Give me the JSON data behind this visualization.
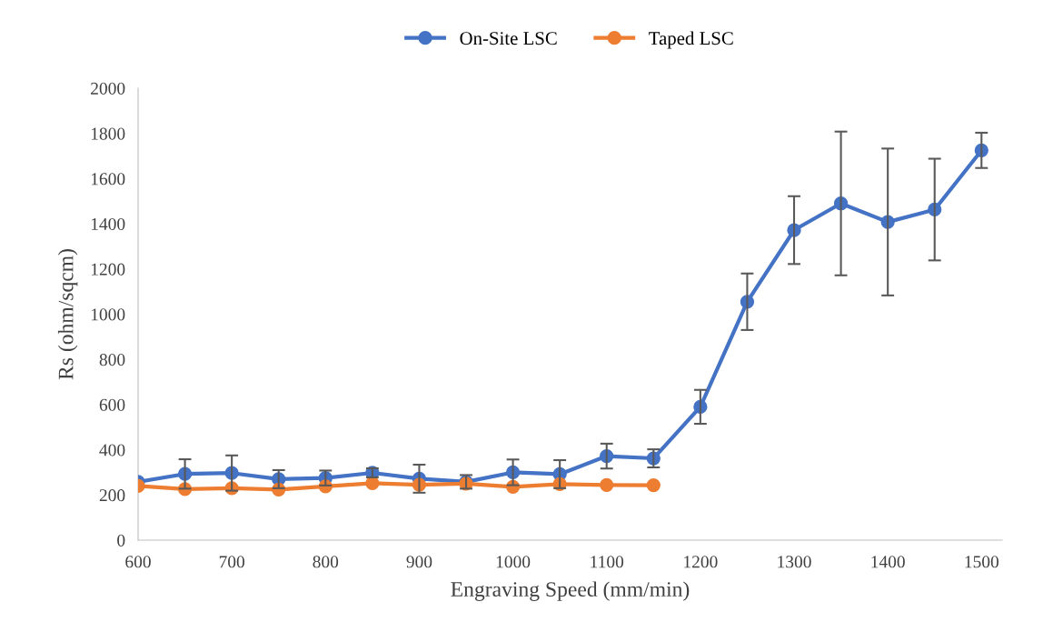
{
  "chart_data": {
    "type": "line",
    "xlabel": "Engraving Speed (mm/min)",
    "ylabel": "Rs (ohm/sqcm)",
    "xlim": [
      600,
      1522
    ],
    "xticks": [
      600,
      700,
      800,
      900,
      1000,
      1100,
      1200,
      1300,
      1400,
      1500
    ],
    "ylim": [
      0,
      2000
    ],
    "yticks": [
      0,
      200,
      400,
      600,
      800,
      1000,
      1200,
      1400,
      1600,
      1800,
      2000
    ],
    "grid": false,
    "legend": "top",
    "marker": "circle",
    "line_style": "solid",
    "series": [
      {
        "name": "On-Site LSC",
        "color": "#4472c4",
        "x": [
          600,
          650,
          700,
          750,
          800,
          850,
          900,
          950,
          1000,
          1050,
          1100,
          1150,
          1200,
          1250,
          1300,
          1350,
          1400,
          1450,
          1500
        ],
        "values": [
          258,
          293,
          297,
          270,
          275,
          298,
          272,
          258,
          300,
          292,
          372,
          362,
          590,
          1055,
          1372,
          1490,
          1408,
          1463,
          1725
        ],
        "errors": [
          null,
          65,
          78,
          40,
          33,
          20,
          62,
          30,
          57,
          62,
          55,
          40,
          75,
          125,
          150,
          318,
          325,
          225,
          78
        ]
      },
      {
        "name": "Taped LSC",
        "color": "#ed7d31",
        "x": [
          600,
          650,
          700,
          750,
          800,
          850,
          900,
          950,
          1000,
          1050,
          1100,
          1150
        ],
        "values": [
          240,
          226,
          230,
          224,
          238,
          252,
          245,
          250,
          236,
          248,
          244,
          243
        ]
      }
    ]
  }
}
